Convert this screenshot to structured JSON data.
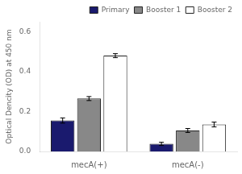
{
  "chart_data": {
    "type": "bar",
    "categories": [
      "mecA(+)",
      "mecA(-)"
    ],
    "series": [
      {
        "name": "Primary",
        "color": "#1a1a6e",
        "values": [
          0.155,
          0.038
        ],
        "errors": [
          0.013,
          0.008
        ]
      },
      {
        "name": "Booster 1",
        "color": "#888888",
        "values": [
          0.265,
          0.105
        ],
        "errors": [
          0.01,
          0.01
        ]
      },
      {
        "name": "Booster 2",
        "color": "#ffffff",
        "values": [
          0.48,
          0.135
        ],
        "errors": [
          0.01,
          0.012
        ]
      }
    ],
    "ylabel": "Optical Dencity (OD) at 450 nm",
    "ylim": [
      0.0,
      0.65
    ],
    "yticks": [
      {
        "value": 0.0,
        "label": "0.0"
      },
      0.2,
      0.4,
      0.6
    ],
    "grid": false,
    "legend": "upper right"
  }
}
